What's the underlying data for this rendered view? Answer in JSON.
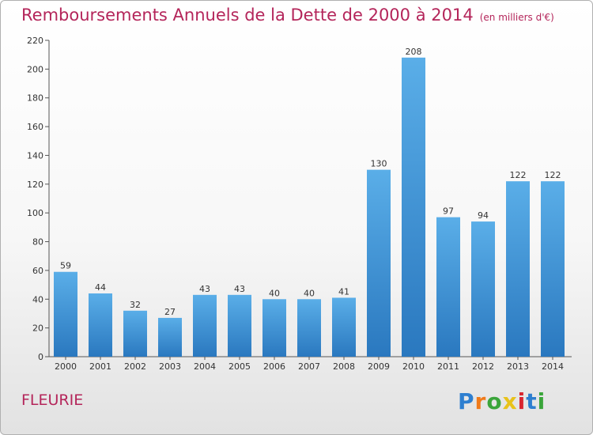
{
  "title": "Remboursements Annuels de la Dette de 2000 à 2014",
  "unit": "(en milliers d'€)",
  "commune": "FLEURIE",
  "logo": {
    "letters": [
      "P",
      "r",
      "o",
      "x",
      "i",
      "t",
      "i"
    ],
    "colors": [
      "#2e7fd0",
      "#f07b1a",
      "#3aa53a",
      "#e8c21a",
      "#d9252f",
      "#2e7fd0",
      "#3aa53a"
    ]
  },
  "colors": {
    "bar_top": "#5aaee8",
    "bar_bottom": "#2a78bf",
    "title": "#b4255a"
  },
  "chart_data": {
    "type": "bar",
    "title": "Remboursements Annuels de la Dette de 2000 à 2014",
    "xlabel": "",
    "ylabel": "",
    "categories": [
      "2000",
      "2001",
      "2002",
      "2003",
      "2004",
      "2005",
      "2006",
      "2007",
      "2008",
      "2009",
      "2010",
      "2011",
      "2012",
      "2013",
      "2014"
    ],
    "values": [
      59,
      44,
      32,
      27,
      43,
      43,
      40,
      40,
      41,
      130,
      208,
      97,
      94,
      122,
      122
    ],
    "ylim": [
      0,
      220
    ],
    "yticks": [
      0,
      20,
      40,
      60,
      80,
      100,
      120,
      140,
      160,
      180,
      200,
      220
    ],
    "grid": false,
    "data_labels": true
  }
}
